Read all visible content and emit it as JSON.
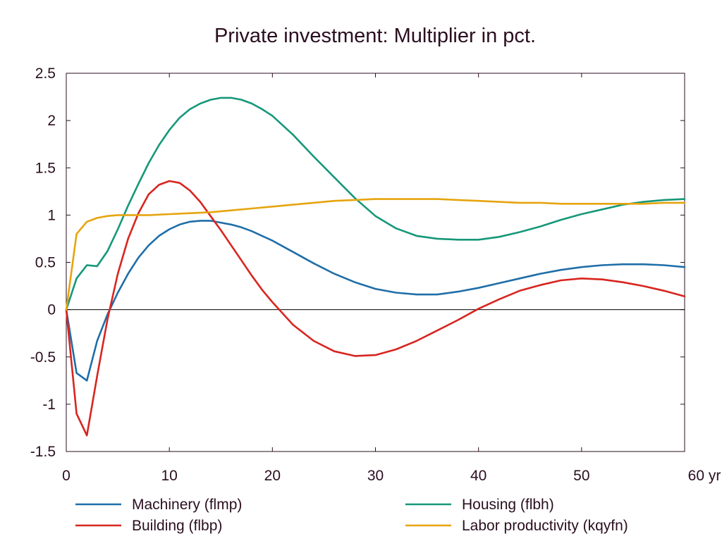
{
  "chart_data": {
    "type": "line",
    "title": "Private investment: Multiplier in pct.",
    "xlabel": "",
    "ylabel": "",
    "xlim": [
      0,
      60
    ],
    "ylim": [
      -1.5,
      2.5
    ],
    "x_ticks": [
      0,
      10,
      20,
      30,
      40,
      50,
      60
    ],
    "x_tick_labels": [
      "0",
      "10",
      "20",
      "30",
      "40",
      "50",
      "60 yr"
    ],
    "y_ticks": [
      2.5,
      2,
      1.5,
      1,
      0.5,
      0,
      -0.5,
      -1,
      -1.5
    ],
    "y_tick_labels": [
      "2.5",
      "2",
      "1.5",
      "1",
      "0.5",
      "0",
      "-0.5",
      "-1",
      "-1.5"
    ],
    "grid": false,
    "zero_line": true,
    "legend_position": "bottom",
    "series": [
      {
        "name": "Machinery (flmp)",
        "color": "#1f6ea8",
        "x": [
          0,
          1,
          2,
          3,
          4,
          5,
          6,
          7,
          8,
          9,
          10,
          11,
          12,
          13,
          14,
          15,
          16,
          17,
          18,
          19,
          20,
          22,
          24,
          26,
          28,
          30,
          32,
          34,
          36,
          38,
          40,
          42,
          44,
          46,
          48,
          50,
          52,
          54,
          56,
          58,
          60
        ],
        "y": [
          0,
          -0.67,
          -0.75,
          -0.33,
          -0.05,
          0.18,
          0.38,
          0.55,
          0.68,
          0.78,
          0.85,
          0.9,
          0.93,
          0.94,
          0.94,
          0.92,
          0.9,
          0.87,
          0.83,
          0.78,
          0.73,
          0.61,
          0.49,
          0.38,
          0.29,
          0.22,
          0.18,
          0.16,
          0.16,
          0.19,
          0.23,
          0.28,
          0.33,
          0.38,
          0.42,
          0.45,
          0.47,
          0.48,
          0.48,
          0.47,
          0.45
        ]
      },
      {
        "name": "Building (flbp)",
        "color": "#d8251f",
        "x": [
          0,
          1,
          2,
          3,
          4,
          5,
          6,
          7,
          8,
          9,
          10,
          11,
          12,
          13,
          14,
          15,
          16,
          17,
          18,
          19,
          20,
          22,
          24,
          26,
          28,
          30,
          32,
          34,
          36,
          38,
          40,
          42,
          44,
          46,
          48,
          50,
          52,
          54,
          56,
          58,
          60
        ],
        "y": [
          0,
          -1.1,
          -1.33,
          -0.7,
          -0.1,
          0.38,
          0.75,
          1.02,
          1.22,
          1.32,
          1.36,
          1.34,
          1.26,
          1.14,
          0.99,
          0.84,
          0.68,
          0.52,
          0.36,
          0.21,
          0.08,
          -0.16,
          -0.33,
          -0.44,
          -0.49,
          -0.48,
          -0.42,
          -0.33,
          -0.22,
          -0.11,
          0.01,
          0.11,
          0.2,
          0.26,
          0.31,
          0.33,
          0.32,
          0.29,
          0.25,
          0.2,
          0.14
        ]
      },
      {
        "name": "Housing (flbh)",
        "color": "#16977a",
        "x": [
          0,
          1,
          2,
          3,
          4,
          5,
          6,
          7,
          8,
          9,
          10,
          11,
          12,
          13,
          14,
          15,
          16,
          17,
          18,
          19,
          20,
          22,
          24,
          26,
          28,
          30,
          32,
          34,
          36,
          38,
          40,
          42,
          44,
          46,
          48,
          50,
          52,
          54,
          56,
          58,
          60
        ],
        "y": [
          0,
          0.33,
          0.47,
          0.46,
          0.62,
          0.85,
          1.1,
          1.33,
          1.55,
          1.74,
          1.9,
          2.03,
          2.12,
          2.18,
          2.22,
          2.24,
          2.24,
          2.22,
          2.18,
          2.12,
          2.05,
          1.85,
          1.62,
          1.4,
          1.18,
          0.99,
          0.86,
          0.78,
          0.75,
          0.74,
          0.74,
          0.77,
          0.82,
          0.88,
          0.95,
          1.01,
          1.06,
          1.11,
          1.14,
          1.16,
          1.17
        ]
      },
      {
        "name": "Labor productivity (kqyfn)",
        "color": "#e6a40f",
        "x": [
          0,
          1,
          2,
          3,
          4,
          5,
          6,
          8,
          10,
          12,
          14,
          16,
          18,
          20,
          22,
          24,
          26,
          28,
          30,
          32,
          34,
          36,
          38,
          40,
          42,
          44,
          46,
          48,
          50,
          52,
          54,
          56,
          58,
          60
        ],
        "y": [
          0,
          0.8,
          0.93,
          0.97,
          0.99,
          1,
          1,
          1,
          1.01,
          1.02,
          1.03,
          1.05,
          1.07,
          1.09,
          1.11,
          1.13,
          1.15,
          1.16,
          1.17,
          1.17,
          1.17,
          1.17,
          1.16,
          1.15,
          1.14,
          1.13,
          1.13,
          1.12,
          1.12,
          1.12,
          1.12,
          1.12,
          1.13,
          1.13
        ]
      }
    ]
  }
}
